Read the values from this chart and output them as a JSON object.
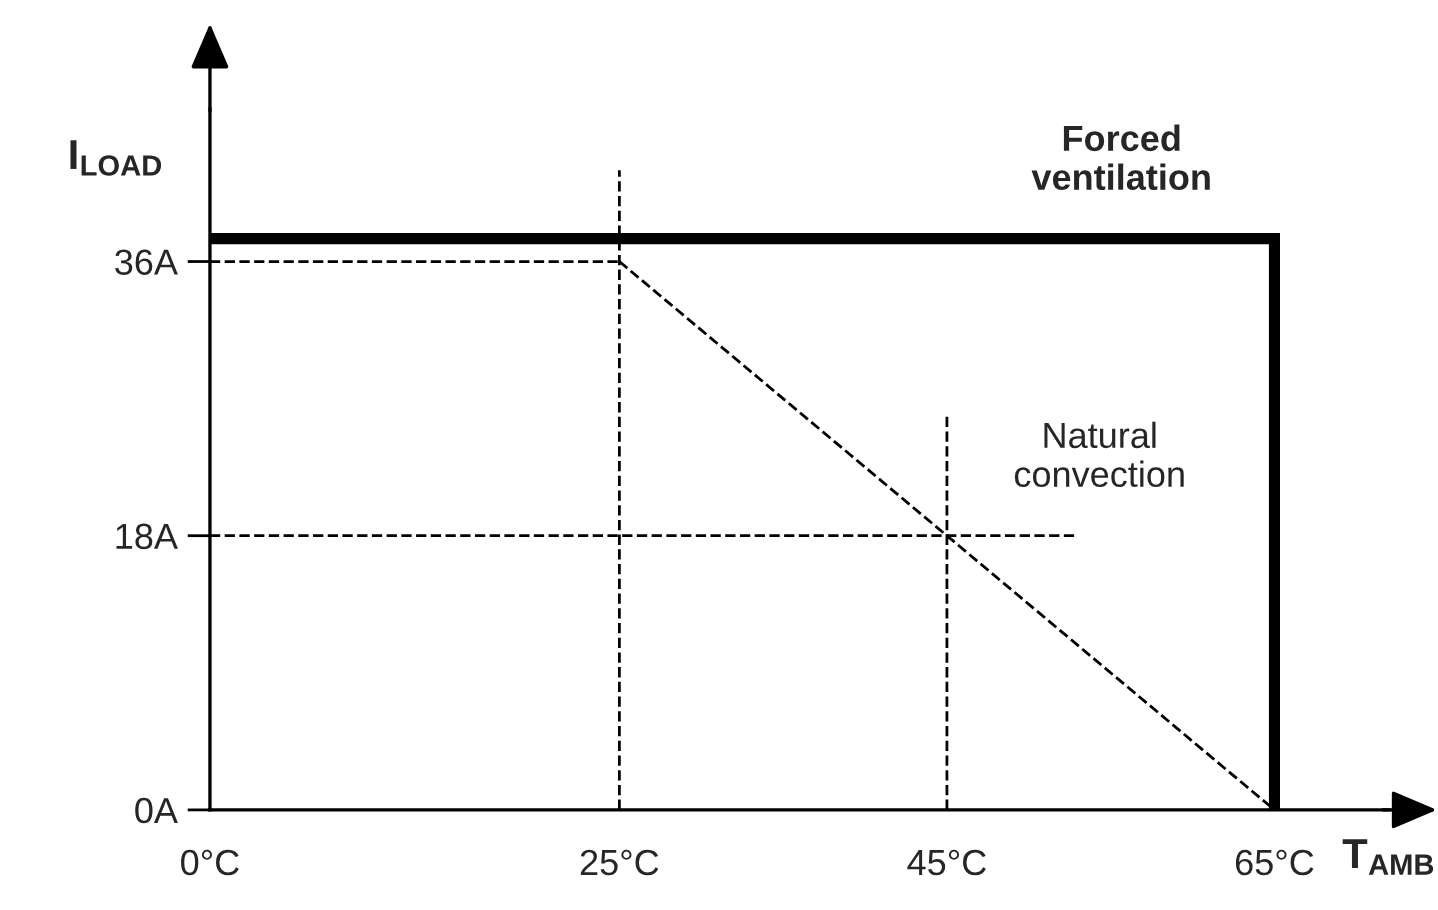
{
  "chart_data": {
    "type": "line",
    "xlabel": "T$_{AMB}$",
    "ylabel": "I$_{LOAD}$",
    "xlim": [
      0,
      72
    ],
    "ylim": [
      0,
      46
    ],
    "xticks": [
      {
        "value": 0,
        "label": "0°C"
      },
      {
        "value": 25,
        "label": "25°C"
      },
      {
        "value": 45,
        "label": "45°C"
      },
      {
        "value": 65,
        "label": "65°C"
      }
    ],
    "yticks": [
      {
        "value": 0,
        "label": "0A"
      },
      {
        "value": 18,
        "label": "18A"
      },
      {
        "value": 36,
        "label": "36A"
      }
    ],
    "series": [
      {
        "name": "Forced\nventilation",
        "x": [
          0,
          65,
          65
        ],
        "values": [
          37.5,
          37.5,
          0
        ],
        "color": "#000000",
        "line_style": "solid"
      },
      {
        "name": "Natural\nconvection",
        "x": [
          25,
          65
        ],
        "values": [
          36,
          0
        ],
        "color": "#000000",
        "line_style": "dashed"
      },
      {
        "x": [
          0,
          25
        ],
        "values": [
          36,
          36
        ],
        "color": "#000000",
        "line_style": "dashed"
      },
      {
        "x": [
          0,
          53
        ],
        "values": [
          18,
          18
        ],
        "color": "#000000",
        "line_style": "dashed"
      },
      {
        "x": [
          25,
          25
        ],
        "values": [
          0,
          42
        ],
        "color": "#000000",
        "line_style": "dashed"
      },
      {
        "x": [
          45,
          45
        ],
        "values": [
          0,
          26
        ],
        "color": "#000000",
        "line_style": "dashed"
      }
    ],
    "grid": false,
    "legend": false
  }
}
